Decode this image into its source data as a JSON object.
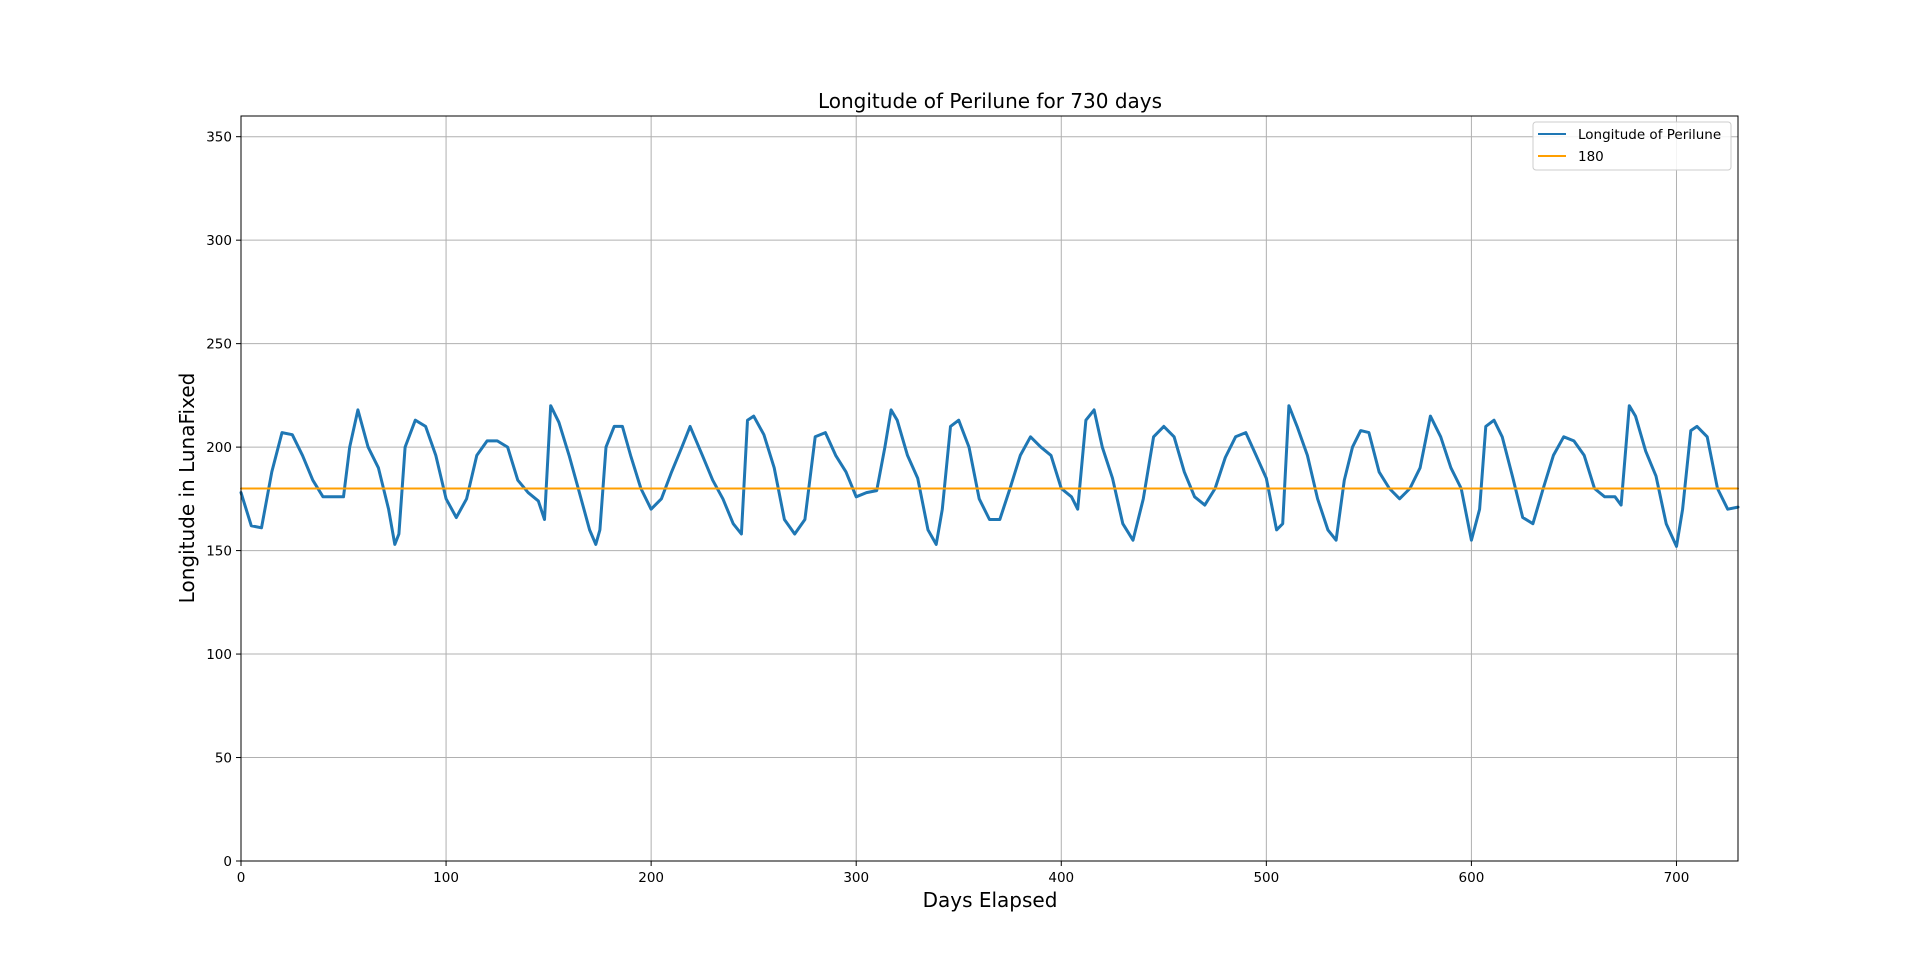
{
  "chart_data": {
    "type": "line",
    "title": "Longitude of Perilune for 730 days",
    "xlabel": "Days Elapsed",
    "ylabel": "Longitude in LunaFixed",
    "xlim": [
      0,
      730
    ],
    "ylim": [
      0,
      360
    ],
    "x_ticks": [
      "0",
      "100",
      "200",
      "300",
      "400",
      "500",
      "600",
      "700"
    ],
    "y_ticks": [
      "0",
      "50",
      "100",
      "150",
      "200",
      "250",
      "300",
      "350"
    ],
    "grid": true,
    "legend_position": "top-right",
    "series": [
      {
        "name": "Longitude of Perilune",
        "color": "#1f77b4",
        "x": [
          0,
          5,
          10,
          15,
          20,
          25,
          30,
          35,
          40,
          45,
          50,
          53,
          57,
          62,
          67,
          72,
          75,
          77,
          80,
          85,
          90,
          95,
          100,
          105,
          110,
          115,
          120,
          125,
          130,
          135,
          140,
          145,
          148,
          151,
          155,
          160,
          165,
          170,
          173,
          175,
          178,
          182,
          186,
          190,
          195,
          200,
          205,
          210,
          215,
          219,
          225,
          230,
          235,
          240,
          244,
          247,
          250,
          255,
          260,
          265,
          270,
          275,
          280,
          285,
          290,
          295,
          300,
          305,
          310,
          314,
          317,
          320,
          325,
          330,
          335,
          339,
          342,
          346,
          350,
          355,
          360,
          365,
          370,
          375,
          380,
          385,
          390,
          395,
          400,
          405,
          408,
          412,
          416,
          420,
          425,
          430,
          435,
          440,
          445,
          450,
          455,
          460,
          465,
          470,
          475,
          480,
          485,
          490,
          495,
          500,
          505,
          508,
          511,
          515,
          520,
          525,
          530,
          534,
          538,
          542,
          546,
          550,
          555,
          560,
          565,
          570,
          575,
          580,
          585,
          590,
          595,
          600,
          604,
          607,
          611,
          615,
          620,
          625,
          630,
          635,
          640,
          645,
          650,
          655,
          660,
          665,
          670,
          673,
          677,
          680,
          685,
          690,
          695,
          700,
          703,
          707,
          710,
          715,
          720,
          725,
          730
        ],
        "values": [
          178,
          162,
          161,
          188,
          207,
          206,
          196,
          184,
          176,
          176,
          176,
          200,
          218,
          200,
          190,
          170,
          153,
          158,
          200,
          213,
          210,
          196,
          175,
          166,
          175,
          196,
          203,
          203,
          200,
          184,
          178,
          174,
          165,
          220,
          212,
          196,
          178,
          160,
          153,
          160,
          200,
          210,
          210,
          196,
          180,
          170,
          175,
          188,
          200,
          210,
          196,
          184,
          175,
          163,
          158,
          213,
          215,
          206,
          190,
          165,
          158,
          165,
          205,
          207,
          196,
          188,
          176,
          178,
          179,
          200,
          218,
          213,
          196,
          185,
          160,
          153,
          170,
          210,
          213,
          200,
          175,
          165,
          165,
          180,
          196,
          205,
          200,
          196,
          180,
          176,
          170,
          213,
          218,
          200,
          185,
          163,
          155,
          175,
          205,
          210,
          205,
          188,
          176,
          172,
          180,
          195,
          205,
          207,
          196,
          185,
          160,
          163,
          220,
          210,
          196,
          175,
          160,
          155,
          184,
          200,
          208,
          207,
          188,
          180,
          175,
          180,
          190,
          215,
          205,
          190,
          180,
          155,
          170,
          210,
          213,
          205,
          186,
          166,
          163,
          180,
          196,
          205,
          203,
          196,
          180,
          176,
          176,
          172,
          220,
          215,
          198,
          186,
          163,
          152,
          170,
          208,
          210,
          205,
          180,
          170,
          171
        ]
      },
      {
        "name": "180",
        "color": "#ff9f00",
        "x": [
          0,
          730
        ],
        "values": [
          180,
          180
        ]
      }
    ]
  }
}
